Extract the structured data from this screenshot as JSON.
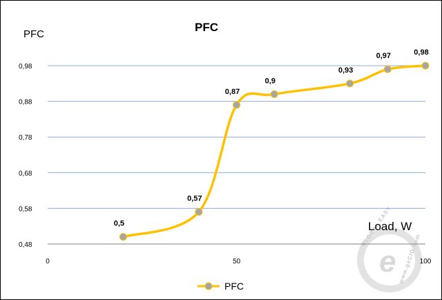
{
  "chart_data": {
    "type": "line",
    "title": "PFC",
    "ylabel": "PFC",
    "xlabel": "Load, W",
    "xlim": [
      0,
      100
    ],
    "ylim": [
      0.48,
      0.98
    ],
    "xticks": [
      0,
      50,
      100
    ],
    "xtick_labels": [
      "0",
      "50",
      "100"
    ],
    "yticks": [
      0.48,
      0.58,
      0.68,
      0.78,
      0.88,
      0.98
    ],
    "ytick_labels": [
      "0,48",
      "0,58",
      "0,68",
      "0,78",
      "0,88",
      "0,98"
    ],
    "grid": "horizontal",
    "legend_position": "bottom",
    "series": [
      {
        "name": "PFC",
        "color": "#ffc000",
        "marker_color": "#a6a6a6",
        "x": [
          20,
          40,
          50,
          60,
          80,
          90,
          100
        ],
        "y": [
          0.5,
          0.57,
          0.87,
          0.9,
          0.93,
          0.97,
          0.98
        ],
        "labels": [
          "0,5",
          "0,57",
          "0,87",
          "0,9",
          "0,93",
          "0,97",
          "0,98"
        ]
      }
    ]
  },
  "watermark": {
    "brand": "e",
    "text": "GLOBAL EASY",
    "url": "www.geCID.com"
  }
}
